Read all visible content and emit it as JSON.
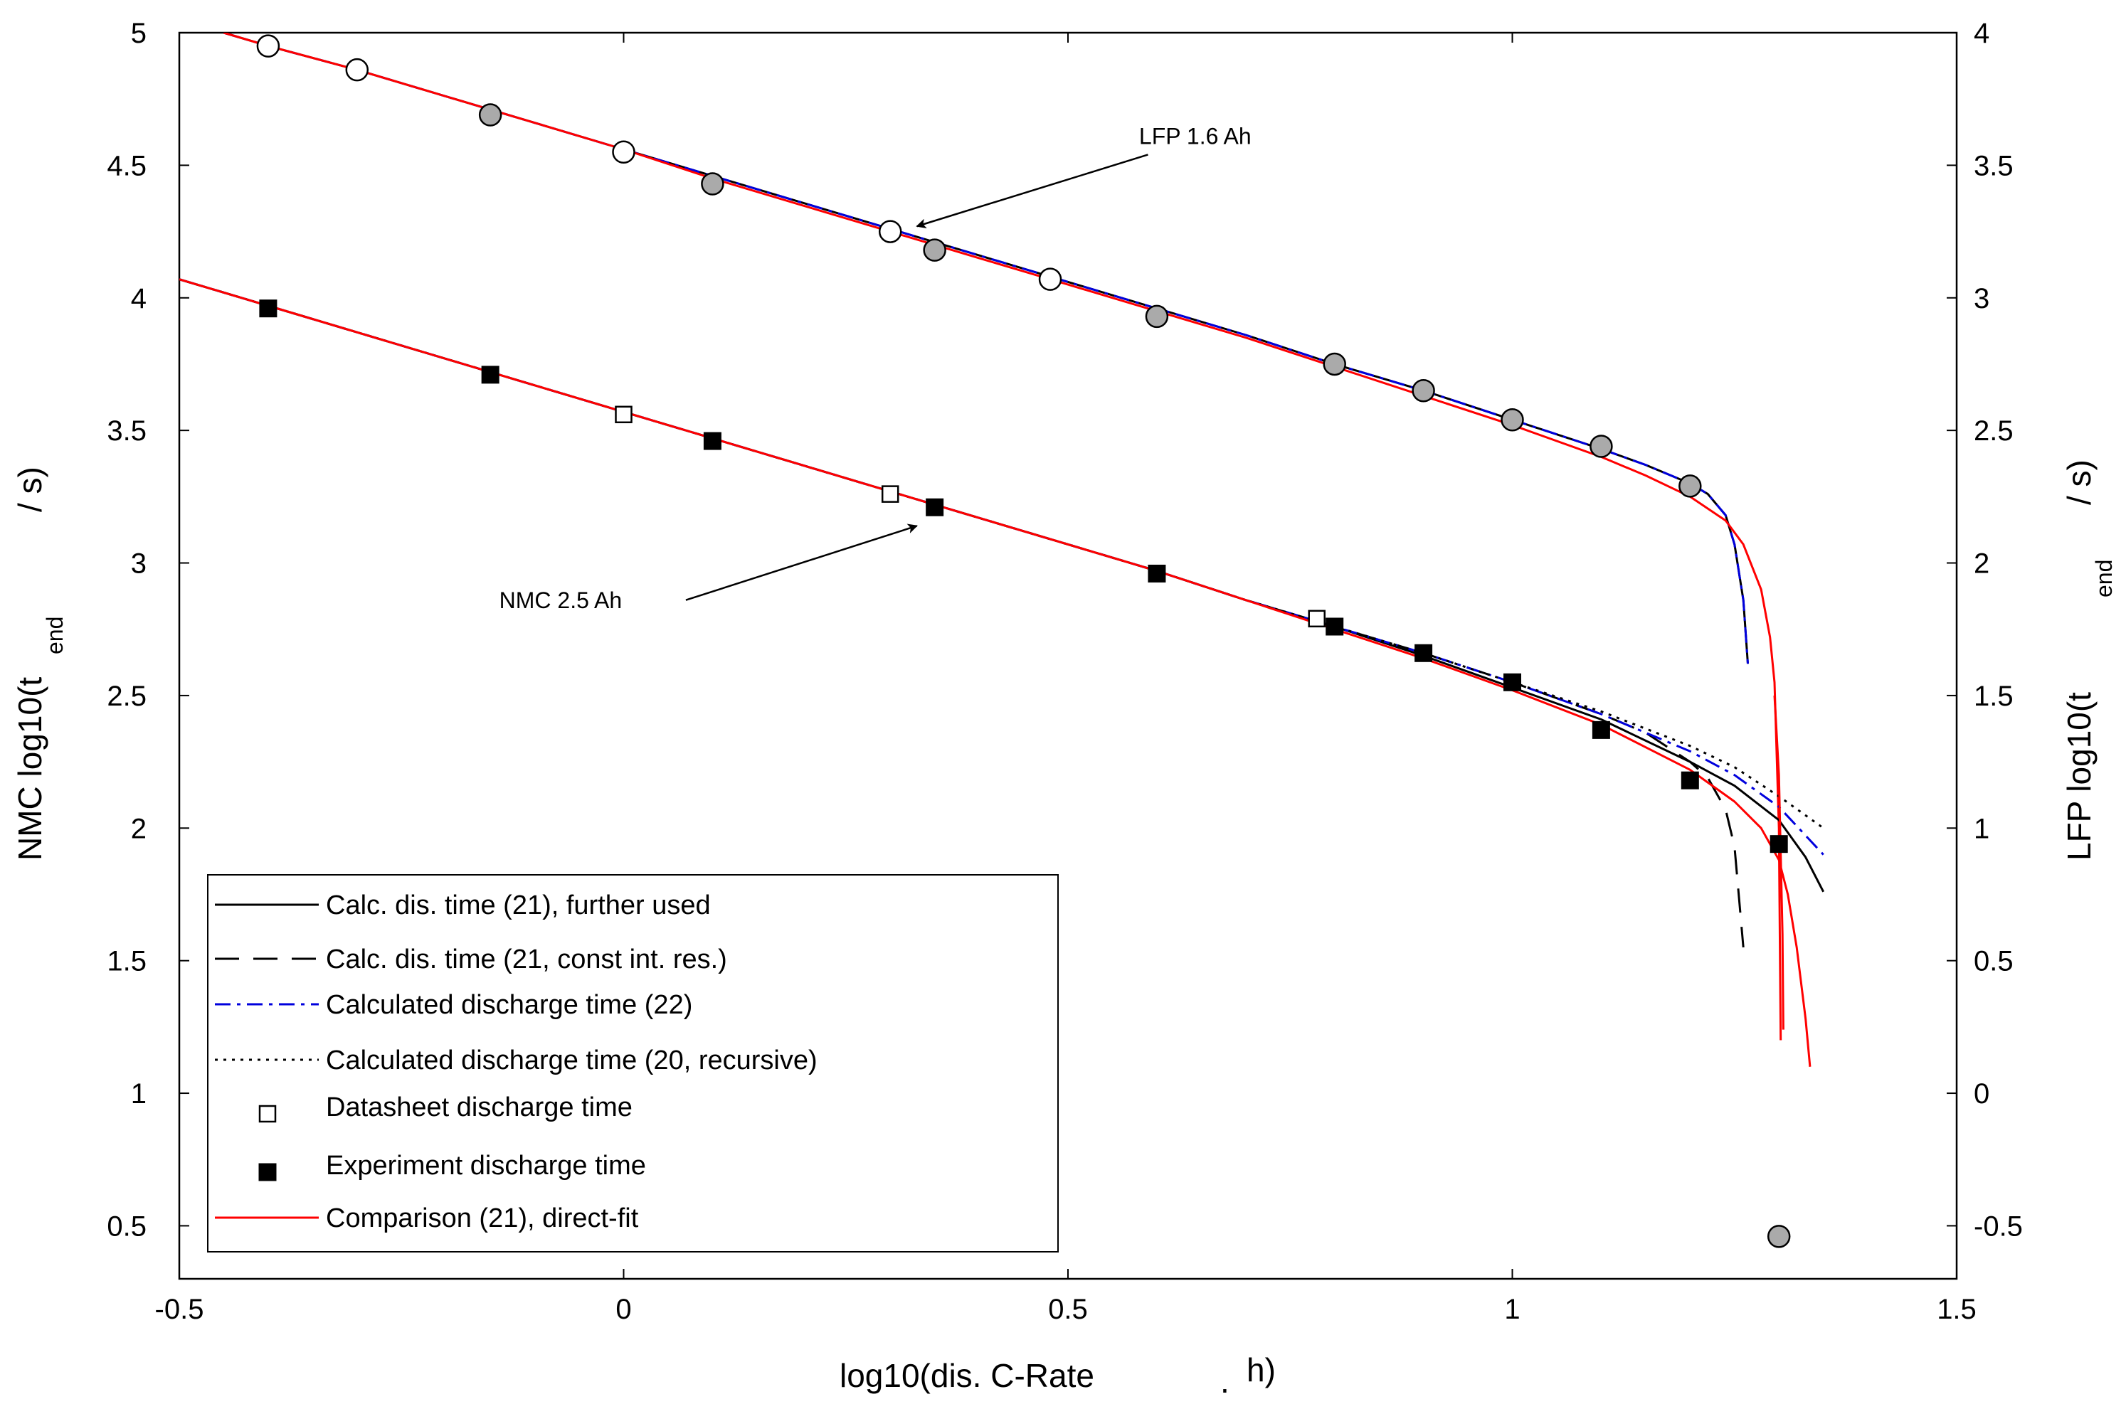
{
  "chart_data": {
    "type": "line",
    "xlabel": "log10(dis. C-Rate",
    "xlabel_suffix_dot": ".",
    "xlabel_suffix": "h)",
    "ylabel_left": "NMC log10(t",
    "ylabel_left_sub": "end",
    "ylabel_left_suffix": "/ s)",
    "ylabel_right": "LFP log10(t",
    "ylabel_right_sub": "end",
    "ylabel_right_suffix": "/ s)",
    "xlim": [
      -0.5,
      1.5
    ],
    "ylim_left": [
      0.3,
      5
    ],
    "ylim_right": [
      -0.7,
      4
    ],
    "xticks": [
      -0.5,
      0,
      0.5,
      1,
      1.5
    ],
    "xtick_labels": [
      "-0.5",
      "0",
      "0.5",
      "1",
      "1.5"
    ],
    "yticks_left": [
      0.5,
      1,
      1.5,
      2,
      2.5,
      3,
      3.5,
      4,
      4.5,
      5
    ],
    "ytick_labels_left": [
      "0.5",
      "1",
      "1.5",
      "2",
      "2.5",
      "3",
      "3.5",
      "4",
      "4.5",
      "5"
    ],
    "yticks_right": [
      -0.5,
      0,
      0.5,
      1,
      1.5,
      2,
      2.5,
      3,
      3.5,
      4
    ],
    "ytick_labels_right": [
      "-0.5",
      "0",
      "0.5",
      "1",
      "1.5",
      "2",
      "2.5",
      "3",
      "3.5",
      "4"
    ],
    "annotations": [
      {
        "text": "LFP 1.6 Ah",
        "anchor": [
          0.58,
          4.58
        ],
        "arrow_from": [
          0.59,
          4.54
        ],
        "arrow_to": [
          0.33,
          4.27
        ]
      },
      {
        "text": "NMC 2.5 Ah",
        "anchor": [
          -0.14,
          2.83
        ],
        "arrow_from": [
          0.07,
          2.86
        ],
        "arrow_to": [
          0.33,
          3.14
        ]
      }
    ],
    "legend": {
      "placement": "bottom-left",
      "entries": [
        {
          "label": "Calc. dis. time (21), further used",
          "style": "solid",
          "color": "#000000"
        },
        {
          "label": "Calc. dis. time (21, const int. res.)",
          "style": "dashed",
          "color": "#000000"
        },
        {
          "label": "Calculated discharge time (22)",
          "style": "dashdot",
          "color": "#0000dd"
        },
        {
          "label": "Calculated discharge time (20, recursive)",
          "style": "dotted",
          "color": "#000000"
        },
        {
          "label": "Datasheet discharge time",
          "style": "open-square",
          "color": "#000000"
        },
        {
          "label": "Experiment discharge time",
          "style": "filled-square",
          "color": "#000000"
        },
        {
          "label": "Comparison (21), direct-fit",
          "style": "solid",
          "color": "#ff0000"
        }
      ]
    },
    "series": [
      {
        "group": "lfp",
        "axis": "right",
        "style": "solid",
        "color": "#000000",
        "x": [
          -0.45,
          -0.4,
          -0.3,
          -0.2,
          -0.1,
          0,
          0.1,
          0.2,
          0.3,
          0.4,
          0.5,
          0.6,
          0.7,
          0.8,
          0.9,
          1.0,
          1.1,
          1.15,
          1.2,
          1.22,
          1.24,
          1.25,
          1.26,
          1.265
        ],
        "y": [
          4.0,
          3.95,
          3.86,
          3.76,
          3.66,
          3.56,
          3.46,
          3.36,
          3.26,
          3.16,
          3.06,
          2.96,
          2.86,
          2.75,
          2.65,
          2.54,
          2.43,
          2.37,
          2.3,
          2.26,
          2.18,
          2.07,
          1.86,
          1.62
        ]
      },
      {
        "group": "lfp",
        "axis": "right",
        "style": "dashdot",
        "color": "#0000dd",
        "x": [
          -0.45,
          -0.4,
          -0.3,
          -0.2,
          -0.1,
          0,
          0.1,
          0.2,
          0.3,
          0.4,
          0.5,
          0.6,
          0.7,
          0.8,
          0.9,
          1.0,
          1.1,
          1.15,
          1.2,
          1.22,
          1.24,
          1.25,
          1.26,
          1.265
        ],
        "y": [
          4.0,
          3.95,
          3.86,
          3.76,
          3.66,
          3.56,
          3.46,
          3.36,
          3.26,
          3.16,
          3.06,
          2.96,
          2.86,
          2.75,
          2.65,
          2.54,
          2.43,
          2.37,
          2.3,
          2.26,
          2.18,
          2.07,
          1.86,
          1.62
        ]
      },
      {
        "group": "lfp",
        "axis": "right",
        "style": "solid",
        "color": "#ff0000",
        "x": [
          -0.45,
          -0.4,
          -0.3,
          -0.2,
          -0.1,
          0,
          0.1,
          0.2,
          0.3,
          0.4,
          0.5,
          0.6,
          0.7,
          0.8,
          0.9,
          1.0,
          1.1,
          1.15,
          1.2,
          1.24,
          1.26,
          1.28,
          1.29,
          1.295,
          1.3,
          1.302
        ],
        "y": [
          4.0,
          3.95,
          3.86,
          3.76,
          3.66,
          3.56,
          3.45,
          3.35,
          3.25,
          3.15,
          3.05,
          2.95,
          2.85,
          2.74,
          2.63,
          2.52,
          2.4,
          2.33,
          2.25,
          2.16,
          2.07,
          1.9,
          1.72,
          1.55,
          1.0,
          0.2
        ]
      },
      {
        "group": "nmc",
        "axis": "left",
        "style": "solid",
        "color": "#000000",
        "x": [
          -0.5,
          -0.4,
          -0.3,
          -0.2,
          -0.1,
          0,
          0.1,
          0.2,
          0.3,
          0.4,
          0.5,
          0.6,
          0.7,
          0.8,
          0.9,
          1.0,
          1.1,
          1.2,
          1.25,
          1.3,
          1.33,
          1.35
        ],
        "y": [
          4.07,
          3.97,
          3.87,
          3.77,
          3.67,
          3.57,
          3.47,
          3.37,
          3.27,
          3.17,
          3.07,
          2.97,
          2.86,
          2.76,
          2.65,
          2.53,
          2.41,
          2.25,
          2.16,
          2.03,
          1.89,
          1.76
        ]
      },
      {
        "group": "nmc",
        "axis": "left",
        "style": "dashed",
        "color": "#000000",
        "x": [
          -0.5,
          -0.4,
          -0.3,
          -0.2,
          -0.1,
          0,
          0.1,
          0.2,
          0.3,
          0.4,
          0.5,
          0.6,
          0.7,
          0.8,
          0.9,
          1.0,
          1.1,
          1.15,
          1.2,
          1.22,
          1.24,
          1.25,
          1.26
        ],
        "y": [
          4.07,
          3.97,
          3.87,
          3.77,
          3.67,
          3.57,
          3.47,
          3.37,
          3.27,
          3.17,
          3.07,
          2.97,
          2.86,
          2.76,
          2.66,
          2.55,
          2.43,
          2.36,
          2.25,
          2.19,
          2.07,
          1.93,
          1.55
        ]
      },
      {
        "group": "nmc",
        "axis": "left",
        "style": "dashdot",
        "color": "#0000dd",
        "x": [
          -0.5,
          -0.4,
          -0.3,
          -0.2,
          -0.1,
          0,
          0.1,
          0.2,
          0.3,
          0.4,
          0.5,
          0.6,
          0.7,
          0.8,
          0.9,
          1.0,
          1.1,
          1.2,
          1.25,
          1.3,
          1.35
        ],
        "y": [
          4.07,
          3.97,
          3.87,
          3.77,
          3.67,
          3.57,
          3.47,
          3.37,
          3.27,
          3.17,
          3.07,
          2.97,
          2.86,
          2.76,
          2.66,
          2.55,
          2.43,
          2.29,
          2.2,
          2.08,
          1.9
        ]
      },
      {
        "group": "nmc",
        "axis": "left",
        "style": "dotted",
        "color": "#000000",
        "x": [
          -0.5,
          -0.4,
          -0.3,
          -0.2,
          -0.1,
          0,
          0.1,
          0.2,
          0.3,
          0.4,
          0.5,
          0.6,
          0.7,
          0.8,
          0.9,
          1.0,
          1.1,
          1.2,
          1.25,
          1.3,
          1.35
        ],
        "y": [
          4.07,
          3.97,
          3.87,
          3.77,
          3.67,
          3.57,
          3.47,
          3.37,
          3.27,
          3.17,
          3.07,
          2.97,
          2.86,
          2.76,
          2.66,
          2.55,
          2.44,
          2.31,
          2.23,
          2.12,
          2.0
        ]
      },
      {
        "group": "nmc",
        "axis": "left",
        "style": "solid",
        "color": "#ff0000",
        "x": [
          -0.5,
          -0.4,
          -0.3,
          -0.2,
          -0.1,
          0,
          0.1,
          0.2,
          0.3,
          0.4,
          0.5,
          0.6,
          0.7,
          0.8,
          0.9,
          1.0,
          1.1,
          1.2,
          1.25,
          1.28,
          1.3,
          1.31,
          1.32,
          1.33,
          1.335
        ],
        "y": [
          4.07,
          3.97,
          3.87,
          3.77,
          3.67,
          3.57,
          3.47,
          3.37,
          3.27,
          3.17,
          3.07,
          2.97,
          2.86,
          2.75,
          2.64,
          2.52,
          2.39,
          2.22,
          2.1,
          2.0,
          1.88,
          1.75,
          1.55,
          1.28,
          1.1
        ]
      },
      {
        "group": "nmc",
        "axis": "left",
        "style": "solid",
        "color": "#ff0000",
        "x": [
          1.295,
          1.3,
          1.302,
          1.304,
          1.305
        ],
        "y": [
          2.5,
          2.2,
          1.9,
          1.6,
          1.24
        ]
      }
    ],
    "markers": {
      "lfp_open": {
        "axis": "right",
        "style": "open-circle",
        "x": [
          -0.4,
          -0.3,
          0,
          0.3,
          0.48
        ],
        "y": [
          3.95,
          3.86,
          3.55,
          3.25,
          3.07
        ]
      },
      "lfp_filled": {
        "axis": "right",
        "style": "gray-circle",
        "x": [
          -0.15,
          0.1,
          0.35,
          0.6,
          0.8,
          0.9,
          1.0,
          1.1,
          1.2,
          1.3
        ],
        "y": [
          3.69,
          3.43,
          3.18,
          2.93,
          2.75,
          2.65,
          2.54,
          2.44,
          2.29,
          -0.54
        ]
      },
      "nmc_datasheet": {
        "axis": "left",
        "style": "open-square",
        "x": [
          0,
          0.3,
          0.78
        ],
        "y": [
          3.56,
          3.26,
          2.79
        ]
      },
      "nmc_experiment": {
        "axis": "left",
        "style": "filled-square",
        "x": [
          -0.4,
          -0.15,
          0.1,
          0.35,
          0.6,
          0.8,
          0.9,
          1.0,
          1.1,
          1.2,
          1.3
        ],
        "y": [
          3.96,
          3.71,
          3.46,
          3.21,
          2.96,
          2.76,
          2.66,
          2.55,
          2.37,
          2.18,
          1.94
        ]
      }
    }
  }
}
